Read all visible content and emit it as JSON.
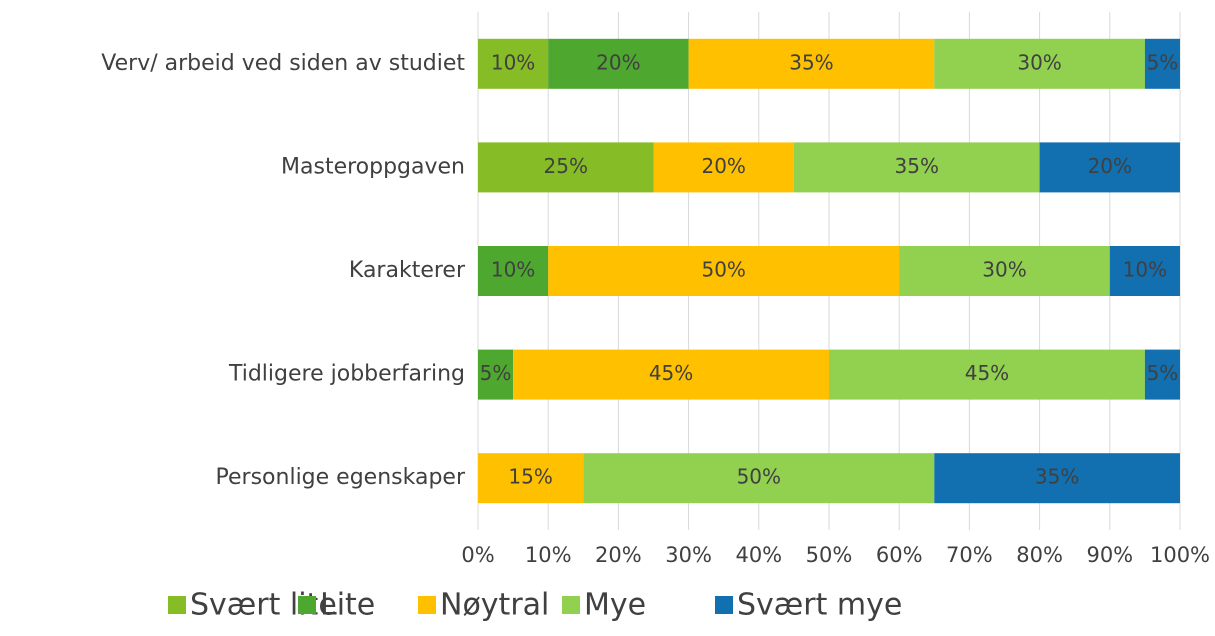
{
  "chart_data": {
    "type": "stacked-barh",
    "categories": [
      "Verv/ arbeid ved siden av studiet",
      "Masteroppgaven",
      "Karakterer",
      "Tidligere jobberfaring",
      "Personlige egenskaper"
    ],
    "series": [
      {
        "name": "Svært lite",
        "color": "#86bc25",
        "values": [
          10,
          25,
          null,
          null,
          null
        ],
        "value_labels": [
          "10%",
          "25%",
          null,
          null,
          null
        ]
      },
      {
        "name": "Lite",
        "color": "#4ea72e",
        "values": [
          20,
          null,
          10,
          5,
          null
        ],
        "value_labels": [
          "20%",
          null,
          "10%",
          "5%",
          null
        ]
      },
      {
        "name": "Nøytral",
        "color": "#ffc000",
        "values": [
          35,
          20,
          50,
          45,
          15
        ],
        "value_labels": [
          "35%",
          "20%",
          "50%",
          "45%",
          "15%"
        ]
      },
      {
        "name": "Mye",
        "color": "#92d050",
        "values": [
          30,
          35,
          30,
          45,
          50
        ],
        "value_labels": [
          "30%",
          "35%",
          "30%",
          "45%",
          "50%"
        ]
      },
      {
        "name": "Svært mye",
        "color": "#126fb0",
        "values": [
          5,
          20,
          10,
          5,
          35
        ],
        "value_labels": [
          "5%",
          "20%",
          "10%",
          "5%",
          "35%"
        ]
      }
    ],
    "xlim": [
      0,
      100
    ],
    "xticks": [
      {
        "value": 0,
        "label": "0%"
      },
      {
        "value": 10,
        "label": "10%"
      },
      {
        "value": 20,
        "label": "20%"
      },
      {
        "value": 30,
        "label": "30%"
      },
      {
        "value": 40,
        "label": "40%"
      },
      {
        "value": 50,
        "label": "50%"
      },
      {
        "value": 60,
        "label": "60%"
      },
      {
        "value": 70,
        "label": "70%"
      },
      {
        "value": 80,
        "label": "80%"
      },
      {
        "value": 90,
        "label": "90%"
      },
      {
        "value": 100,
        "label": "100%"
      }
    ],
    "grid": true,
    "legend": "bottom"
  }
}
